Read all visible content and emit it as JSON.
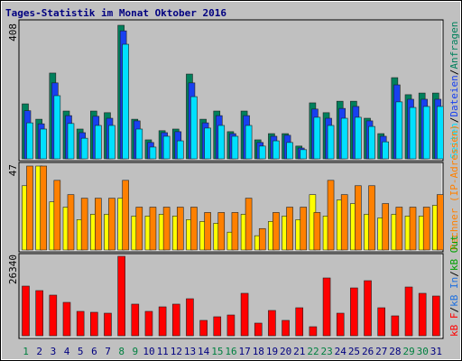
{
  "chart_data": [
    {
      "type": "bar",
      "title": "Tages-Statistik im Monat Oktober 2016",
      "ylim": [
        0,
        408
      ],
      "yticks": [
        408
      ],
      "legend_separator": "/",
      "series": [
        {
          "name": "Anfragen",
          "color": "#00805c",
          "values": [
            168,
            121,
            262,
            146,
            91,
            146,
            141,
            408,
            121,
            58,
            86,
            91,
            259,
            121,
            146,
            83,
            146,
            58,
            77,
            77,
            39,
            171,
            141,
            176,
            176,
            124,
            77,
            248,
            196,
            201,
            201
          ]
        },
        {
          "name": "Dateien",
          "color": "#1840f0",
          "values": [
            147,
            107,
            232,
            132,
            80,
            130,
            124,
            391,
            116,
            50,
            80,
            83,
            232,
            110,
            132,
            77,
            132,
            50,
            69,
            72,
            33,
            152,
            124,
            154,
            160,
            116,
            69,
            226,
            182,
            182,
            182
          ]
        },
        {
          "name": "Seiten",
          "color": "#00e0ff",
          "values": [
            110,
            91,
            193,
            108,
            63,
            102,
            102,
            350,
            91,
            36,
            69,
            55,
            190,
            94,
            102,
            69,
            102,
            39,
            55,
            50,
            28,
            127,
            102,
            124,
            127,
            99,
            52,
            174,
            157,
            160,
            160
          ]
        }
      ]
    },
    {
      "type": "bar",
      "ylim": [
        0,
        47
      ],
      "yticks": [
        47
      ],
      "series": [
        {
          "color": "#ffff00",
          "values": [
            36,
            47,
            27,
            24,
            17,
            20,
            20,
            29,
            19,
            19,
            20,
            19,
            17,
            16,
            15,
            10,
            20,
            8,
            16,
            19,
            17,
            31,
            19,
            28,
            26,
            20,
            18,
            20,
            19,
            19,
            25
          ]
        },
        {
          "name": "Rechner (IP-Adressen)",
          "color": "#ff8000",
          "values": [
            47,
            47,
            39,
            31,
            29,
            29,
            29,
            39,
            24,
            24,
            24,
            24,
            24,
            21,
            21,
            21,
            29,
            12,
            21,
            24,
            24,
            21,
            39,
            31,
            36,
            36,
            26,
            24,
            24,
            24,
            31
          ]
        }
      ]
    },
    {
      "type": "bar",
      "ylim": [
        0,
        26340
      ],
      "yticks": [
        26340
      ],
      "legend_separator": "/",
      "legend": [
        "kB F",
        "kB In",
        "kB Out"
      ],
      "legend_colors": [
        "#ff0000",
        "#1e70e0",
        "#00a000"
      ],
      "categories": [
        "1",
        "2",
        "3",
        "4",
        "5",
        "6",
        "7",
        "8",
        "9",
        "10",
        "11",
        "12",
        "13",
        "14",
        "15",
        "16",
        "17",
        "18",
        "19",
        "20",
        "21",
        "22",
        "23",
        "24",
        "25",
        "26",
        "27",
        "28",
        "29",
        "30",
        "31"
      ],
      "category_colors": [
        "#008040",
        "#000080",
        "#000080",
        "#000080",
        "#000080",
        "#000080",
        "#000080",
        "#008040",
        "#008040",
        "#000080",
        "#000080",
        "#000080",
        "#000080",
        "#000080",
        "#008040",
        "#008040",
        "#000080",
        "#000080",
        "#000080",
        "#000080",
        "#000080",
        "#008040",
        "#008040",
        "#000080",
        "#000080",
        "#000080",
        "#000080",
        "#000080",
        "#008040",
        "#008040",
        "#000080"
      ],
      "series": [
        {
          "name": "kB F",
          "color": "#ff0000",
          "values": [
            16460,
            14970,
            13470,
            11070,
            8080,
            7780,
            7480,
            26340,
            10480,
            8080,
            9580,
            10480,
            12270,
            5090,
            6290,
            6880,
            14070,
            4190,
            8380,
            5090,
            9280,
            2990,
            19160,
            7480,
            15860,
            18260,
            9280,
            6590,
            16160,
            14070,
            13170
          ]
        }
      ]
    }
  ]
}
